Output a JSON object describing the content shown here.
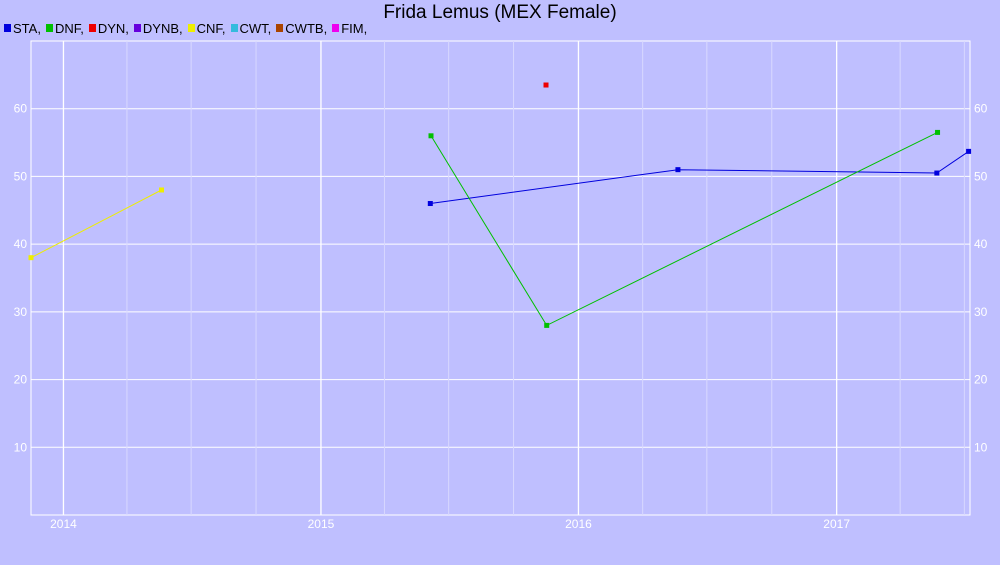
{
  "chart_data": {
    "type": "line",
    "title": "Frida Lemus (MEX Female)",
    "xlabel": "",
    "ylabel": "",
    "x_type": "date",
    "xlim": [
      "2013-11-16",
      "2017-07-09"
    ],
    "ylim": [
      0,
      70
    ],
    "x_ticks": [
      {
        "date": "2014-01-01",
        "label": "2014"
      },
      {
        "date": "2015-01-01",
        "label": "2015"
      },
      {
        "date": "2016-01-01",
        "label": "2016"
      },
      {
        "date": "2017-01-01",
        "label": "2017"
      }
    ],
    "y_ticks": [
      10,
      20,
      30,
      40,
      50,
      60
    ],
    "grid": true,
    "legend_position": "top-left",
    "legend": [
      {
        "label": "STA,",
        "color": "#0000dd"
      },
      {
        "label": "DNF,",
        "color": "#00c000"
      },
      {
        "label": "DYN,",
        "color": "#ee0000"
      },
      {
        "label": "DYNB,",
        "color": "#6600dd"
      },
      {
        "label": "CNF,",
        "color": "#eeee00"
      },
      {
        "label": "CWT,",
        "color": "#33bbdd"
      },
      {
        "label": "CWTB,",
        "color": "#aa4400"
      },
      {
        "label": "FIM,",
        "color": "#ee00ee"
      }
    ],
    "series": [
      {
        "name": "STA",
        "color": "#0000dd",
        "points": [
          {
            "x": "2015-06-05",
            "y": 46
          },
          {
            "x": "2016-05-21",
            "y": 51
          },
          {
            "x": "2017-05-23",
            "y": 50.5
          },
          {
            "x": "2017-07-07",
            "y": 53.7
          }
        ]
      },
      {
        "name": "DNF",
        "color": "#00c000",
        "points": [
          {
            "x": "2015-06-06",
            "y": 56
          },
          {
            "x": "2015-11-17",
            "y": 28
          },
          {
            "x": "2017-05-24",
            "y": 56.5
          }
        ]
      },
      {
        "name": "DYN",
        "color": "#ee0000",
        "points": [
          {
            "x": "2015-11-16",
            "y": 63.5
          }
        ]
      },
      {
        "name": "CNF",
        "color": "#eeee00",
        "points": [
          {
            "x": "2013-11-16",
            "y": 38
          },
          {
            "x": "2014-05-20",
            "y": 48
          }
        ]
      }
    ]
  }
}
